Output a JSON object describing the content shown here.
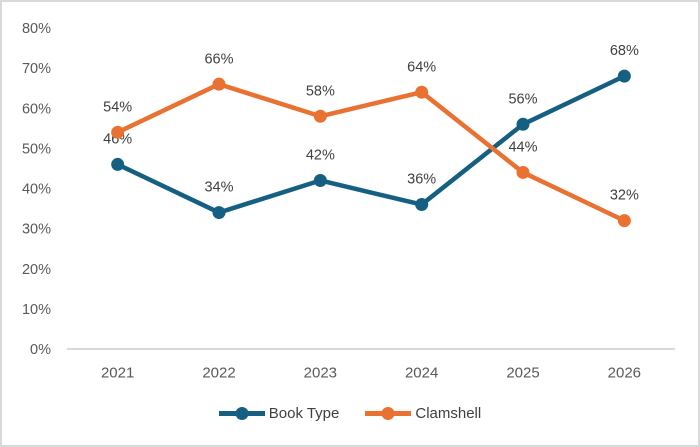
{
  "chart_data": {
    "type": "line",
    "title": "",
    "categories": [
      "2021",
      "2022",
      "2023",
      "2024",
      "2025",
      "2026"
    ],
    "series": [
      {
        "name": "Book Type",
        "color": "#156082",
        "values": [
          46,
          34,
          42,
          36,
          56,
          68
        ],
        "labels": [
          "46%",
          "34%",
          "42%",
          "36%",
          "56%",
          "68%"
        ]
      },
      {
        "name": "Clamshell",
        "color": "#E97132",
        "values": [
          54,
          66,
          58,
          64,
          44,
          32
        ],
        "labels": [
          "54%",
          "66%",
          "58%",
          "64%",
          "44%",
          "32%"
        ]
      }
    ],
    "ylim": [
      0,
      80
    ],
    "ytick_step": 10,
    "ytick_labels": [
      "0%",
      "10%",
      "20%",
      "30%",
      "40%",
      "50%",
      "60%",
      "70%",
      "80%"
    ],
    "grid": false,
    "axis_line_only_bottom": true,
    "data_labels_position": "above",
    "legend_position": "bottom"
  },
  "colors": {
    "background": "#FFFFFF",
    "frame_border": "#D9D9D9",
    "axis_line": "#D9D9D9",
    "axis_text": "#595959",
    "data_label_text": "#404040",
    "legend_text": "#404040"
  }
}
